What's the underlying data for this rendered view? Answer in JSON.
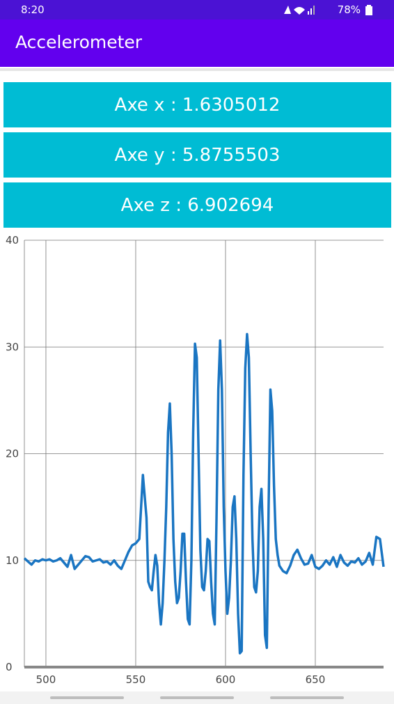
{
  "status_bar": {
    "time": "8:20",
    "battery": "78%"
  },
  "app_bar": {
    "title": "Accelerometer"
  },
  "buttons": [
    "Axe x : 1.6305012",
    "Axe y : 5.8755503",
    "Axe z : 6.902694"
  ],
  "chart_data": {
    "type": "line",
    "x": [
      488,
      490,
      492,
      494,
      496,
      498,
      500,
      502,
      504,
      506,
      508,
      510,
      512,
      514,
      516,
      518,
      520,
      522,
      524,
      526,
      528,
      530,
      532,
      534,
      536,
      538,
      540,
      542,
      544,
      546,
      548,
      550,
      552,
      554,
      556,
      557,
      558,
      559,
      560,
      561,
      562,
      563,
      564,
      565,
      566,
      567,
      568,
      569,
      570,
      571,
      572,
      573,
      574,
      575,
      576,
      577,
      578,
      579,
      580,
      581,
      582,
      583,
      584,
      585,
      586,
      587,
      588,
      589,
      590,
      591,
      592,
      593,
      594,
      595,
      596,
      597,
      598,
      599,
      600,
      601,
      602,
      603,
      604,
      605,
      606,
      607,
      608,
      609,
      610,
      611,
      612,
      613,
      614,
      615,
      616,
      617,
      618,
      619,
      620,
      621,
      622,
      623,
      624,
      625,
      626,
      627,
      628,
      629,
      630,
      632,
      634,
      636,
      638,
      640,
      642,
      644,
      646,
      648,
      650,
      652,
      654,
      656,
      658,
      660,
      662,
      664,
      666,
      668,
      670,
      672,
      674,
      676,
      678,
      680,
      682,
      684,
      686,
      688
    ],
    "series": [
      {
        "color": "#1a75c2",
        "values": [
          10.2,
          9.9,
          9.6,
          10.0,
          9.9,
          10.1,
          10.0,
          10.1,
          9.9,
          10.0,
          10.2,
          9.8,
          9.4,
          10.5,
          9.2,
          9.6,
          10.0,
          10.4,
          10.3,
          9.9,
          10.0,
          10.1,
          9.8,
          9.9,
          9.6,
          10.0,
          9.5,
          9.2,
          10.0,
          10.8,
          11.4,
          11.6,
          12,
          18,
          14,
          8,
          7.5,
          7.2,
          9,
          10.5,
          9.5,
          6,
          4,
          6,
          10,
          15,
          22,
          24.7,
          20,
          12,
          8,
          6,
          6.5,
          9,
          12.5,
          12.5,
          8,
          4.5,
          4,
          10,
          22,
          30.3,
          29,
          20,
          11,
          7.5,
          7.2,
          9,
          12,
          11.8,
          8,
          5,
          4,
          14,
          26,
          30.6,
          26,
          15,
          9,
          5,
          6.5,
          10,
          15,
          16,
          12,
          5,
          1.3,
          1.5,
          18,
          28,
          31.2,
          29,
          20,
          12,
          7.5,
          7,
          9,
          15,
          16.7,
          12,
          3,
          1.8,
          15,
          26,
          24,
          17,
          12,
          10.5,
          9.5,
          9,
          8.8,
          9.5,
          10.5,
          11,
          10.2,
          9.6,
          9.7,
          10.5,
          9.4,
          9.2,
          9.5,
          10,
          9.6,
          10.3,
          9.4,
          10.5,
          9.8,
          9.5,
          9.9,
          9.8,
          10.2,
          9.6,
          9.9,
          10.7,
          9.6,
          12.2,
          12,
          9.4
        ]
      }
    ],
    "xlim": [
      488,
      688
    ],
    "ylim": [
      0,
      40
    ],
    "xticks": [
      500,
      550,
      600,
      650
    ],
    "yticks": [
      0,
      10,
      20,
      30,
      40
    ],
    "grid": true
  }
}
